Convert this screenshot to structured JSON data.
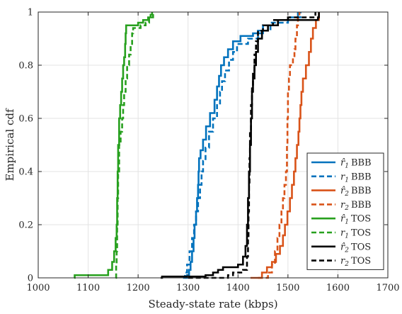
{
  "chart_data": {
    "type": "line",
    "subtype": "empirical-cdf-step",
    "xlabel": "Steady-state rate (kbps)",
    "ylabel": "Empirical cdf",
    "xlim": [
      1000,
      1700
    ],
    "ylim": [
      0,
      1
    ],
    "xticks": [
      1000,
      1100,
      1200,
      1300,
      1400,
      1500,
      1600,
      1700
    ],
    "yticks": [
      0,
      0.2,
      0.4,
      0.6,
      0.8,
      1
    ],
    "xtick_labels": [
      "1000",
      "1100",
      "1200",
      "1300",
      "1400",
      "1500",
      "1600",
      "1700"
    ],
    "ytick_labels": [
      "0",
      "0.2",
      "0.4",
      "0.6",
      "0.8",
      "1"
    ],
    "grid": true,
    "legend_position": "lower-right",
    "series": [
      {
        "name": "r̂1 BBB",
        "label_symbol": "r̂",
        "label_sub": "1",
        "label_text": "BBB",
        "color": "#0072BD",
        "style": "solid",
        "points": [
          [
            1295,
            0
          ],
          [
            1298,
            0.01
          ],
          [
            1302,
            0.03
          ],
          [
            1305,
            0.06
          ],
          [
            1308,
            0.1
          ],
          [
            1311,
            0.15
          ],
          [
            1313,
            0.2
          ],
          [
            1316,
            0.25
          ],
          [
            1318,
            0.3
          ],
          [
            1320,
            0.35
          ],
          [
            1321,
            0.4
          ],
          [
            1322,
            0.45
          ],
          [
            1325,
            0.48
          ],
          [
            1330,
            0.52
          ],
          [
            1336,
            0.57
          ],
          [
            1344,
            0.62
          ],
          [
            1353,
            0.67
          ],
          [
            1358,
            0.72
          ],
          [
            1362,
            0.76
          ],
          [
            1366,
            0.8
          ],
          [
            1372,
            0.83
          ],
          [
            1380,
            0.86
          ],
          [
            1390,
            0.89
          ],
          [
            1405,
            0.91
          ],
          [
            1430,
            0.92
          ],
          [
            1450,
            0.95
          ],
          [
            1480,
            0.97
          ],
          [
            1520,
            1.0
          ]
        ]
      },
      {
        "name": "r1 BBB",
        "label_symbol": "r",
        "label_sub": "1",
        "label_text": "BBB",
        "color": "#0072BD",
        "style": "dashed",
        "points": [
          [
            1290,
            0
          ],
          [
            1294,
            0.02
          ],
          [
            1298,
            0.05
          ],
          [
            1303,
            0.1
          ],
          [
            1308,
            0.15
          ],
          [
            1312,
            0.2
          ],
          [
            1316,
            0.25
          ],
          [
            1320,
            0.3
          ],
          [
            1324,
            0.35
          ],
          [
            1327,
            0.4
          ],
          [
            1330,
            0.44
          ],
          [
            1335,
            0.49
          ],
          [
            1342,
            0.55
          ],
          [
            1350,
            0.6
          ],
          [
            1358,
            0.65
          ],
          [
            1364,
            0.7
          ],
          [
            1368,
            0.74
          ],
          [
            1374,
            0.78
          ],
          [
            1382,
            0.82
          ],
          [
            1390,
            0.85
          ],
          [
            1398,
            0.88
          ],
          [
            1420,
            0.9
          ],
          [
            1440,
            0.93
          ],
          [
            1465,
            0.96
          ],
          [
            1500,
            0.98
          ],
          [
            1525,
            1.0
          ]
        ]
      },
      {
        "name": "r̂2 BBB",
        "label_symbol": "r̂",
        "label_sub": "2",
        "label_text": "BBB",
        "color": "#D95319",
        "style": "solid",
        "points": [
          [
            1425,
            0
          ],
          [
            1448,
            0.02
          ],
          [
            1458,
            0.04
          ],
          [
            1468,
            0.06
          ],
          [
            1476,
            0.09
          ],
          [
            1484,
            0.12
          ],
          [
            1490,
            0.16
          ],
          [
            1494,
            0.2
          ],
          [
            1499,
            0.25
          ],
          [
            1504,
            0.3
          ],
          [
            1508,
            0.35
          ],
          [
            1512,
            0.4
          ],
          [
            1515,
            0.45
          ],
          [
            1518,
            0.5
          ],
          [
            1521,
            0.55
          ],
          [
            1523,
            0.6
          ],
          [
            1525,
            0.65
          ],
          [
            1527,
            0.7
          ],
          [
            1530,
            0.75
          ],
          [
            1536,
            0.8
          ],
          [
            1542,
            0.85
          ],
          [
            1546,
            0.9
          ],
          [
            1550,
            0.94
          ],
          [
            1556,
            0.97
          ],
          [
            1562,
            1.0
          ]
        ]
      },
      {
        "name": "r2 BBB",
        "label_symbol": "r",
        "label_sub": "2",
        "label_text": "BBB",
        "color": "#D95319",
        "style": "dashed",
        "points": [
          [
            1440,
            0
          ],
          [
            1460,
            0.02
          ],
          [
            1468,
            0.05
          ],
          [
            1474,
            0.1
          ],
          [
            1479,
            0.15
          ],
          [
            1483,
            0.2
          ],
          [
            1487,
            0.25
          ],
          [
            1490,
            0.3
          ],
          [
            1493,
            0.35
          ],
          [
            1496,
            0.4
          ],
          [
            1498,
            0.5
          ],
          [
            1499,
            0.6
          ],
          [
            1500,
            0.7
          ],
          [
            1502,
            0.75
          ],
          [
            1504,
            0.8
          ],
          [
            1510,
            0.83
          ],
          [
            1513,
            0.86
          ],
          [
            1515,
            0.9
          ],
          [
            1518,
            0.95
          ],
          [
            1520,
            0.98
          ],
          [
            1523,
            1.0
          ]
        ]
      },
      {
        "name": "r̂1 TOS",
        "label_symbol": "r̂",
        "label_sub": "1",
        "label_text": "TOS",
        "color": "#27A01E",
        "style": "solid",
        "points": [
          [
            1072,
            0
          ],
          [
            1073,
            0.01
          ],
          [
            1130,
            0.01
          ],
          [
            1140,
            0.03
          ],
          [
            1148,
            0.06
          ],
          [
            1152,
            0.1
          ],
          [
            1155,
            0.15
          ],
          [
            1157,
            0.2
          ],
          [
            1158,
            0.3
          ],
          [
            1159,
            0.4
          ],
          [
            1160,
            0.5
          ],
          [
            1162,
            0.6
          ],
          [
            1164,
            0.65
          ],
          [
            1166,
            0.7
          ],
          [
            1168,
            0.75
          ],
          [
            1170,
            0.8
          ],
          [
            1172,
            0.83
          ],
          [
            1174,
            0.88
          ],
          [
            1175,
            0.92
          ],
          [
            1176,
            0.95
          ],
          [
            1200,
            0.96
          ],
          [
            1210,
            0.97
          ],
          [
            1220,
            0.98
          ],
          [
            1225,
            0.99
          ],
          [
            1228,
            1.0
          ]
        ]
      },
      {
        "name": "r1 TOS",
        "label_symbol": "r",
        "label_sub": "1",
        "label_text": "TOS",
        "color": "#27A01E",
        "style": "dashed",
        "points": [
          [
            1155,
            0
          ],
          [
            1156,
            0.05
          ],
          [
            1157,
            0.1
          ],
          [
            1158,
            0.2
          ],
          [
            1159,
            0.3
          ],
          [
            1160,
            0.4
          ],
          [
            1162,
            0.5
          ],
          [
            1165,
            0.55
          ],
          [
            1168,
            0.6
          ],
          [
            1170,
            0.65
          ],
          [
            1172,
            0.7
          ],
          [
            1175,
            0.75
          ],
          [
            1178,
            0.8
          ],
          [
            1182,
            0.84
          ],
          [
            1185,
            0.88
          ],
          [
            1188,
            0.92
          ],
          [
            1190,
            0.94
          ],
          [
            1205,
            0.95
          ],
          [
            1215,
            0.96
          ],
          [
            1222,
            0.98
          ],
          [
            1230,
            1.0
          ]
        ]
      },
      {
        "name": "r̂2 TOS",
        "label_symbol": "r̂",
        "label_sub": "2",
        "label_text": "TOS",
        "color": "#000000",
        "style": "solid",
        "points": [
          [
            1245,
            0
          ],
          [
            1248,
            0.005
          ],
          [
            1335,
            0.01
          ],
          [
            1350,
            0.02
          ],
          [
            1360,
            0.03
          ],
          [
            1370,
            0.04
          ],
          [
            1400,
            0.05
          ],
          [
            1410,
            0.08
          ],
          [
            1415,
            0.12
          ],
          [
            1418,
            0.2
          ],
          [
            1420,
            0.3
          ],
          [
            1422,
            0.4
          ],
          [
            1424,
            0.5
          ],
          [
            1426,
            0.6
          ],
          [
            1428,
            0.7
          ],
          [
            1430,
            0.75
          ],
          [
            1433,
            0.8
          ],
          [
            1436,
            0.85
          ],
          [
            1440,
            0.9
          ],
          [
            1448,
            0.93
          ],
          [
            1460,
            0.95
          ],
          [
            1480,
            0.97
          ],
          [
            1560,
            0.98
          ],
          [
            1562,
            1.0
          ]
        ]
      },
      {
        "name": "r2 TOS",
        "label_symbol": "r",
        "label_sub": "2",
        "label_text": "TOS",
        "color": "#000000",
        "style": "dashed",
        "points": [
          [
            1300,
            0
          ],
          [
            1380,
            0.01
          ],
          [
            1390,
            0.02
          ],
          [
            1410,
            0.03
          ],
          [
            1418,
            0.08
          ],
          [
            1420,
            0.15
          ],
          [
            1421,
            0.25
          ],
          [
            1422,
            0.35
          ],
          [
            1423,
            0.45
          ],
          [
            1424,
            0.55
          ],
          [
            1426,
            0.65
          ],
          [
            1428,
            0.72
          ],
          [
            1430,
            0.78
          ],
          [
            1433,
            0.84
          ],
          [
            1436,
            0.89
          ],
          [
            1440,
            0.93
          ],
          [
            1450,
            0.95
          ],
          [
            1470,
            0.97
          ],
          [
            1500,
            0.98
          ],
          [
            1555,
            1.0
          ]
        ]
      }
    ]
  }
}
